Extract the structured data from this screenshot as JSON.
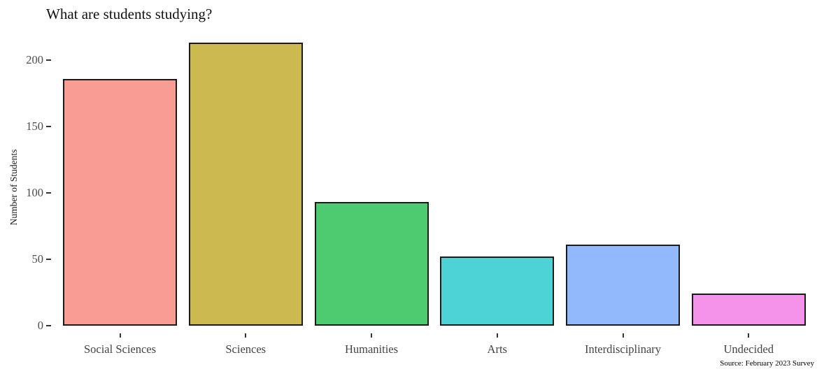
{
  "title": "What are students studying?",
  "caption": "Source: February 2023 Survey",
  "chart_data": {
    "type": "bar",
    "title": "What are students studying?",
    "categories": [
      "Social Sciences",
      "Sciences",
      "Humanities",
      "Arts",
      "Interdisciplinary",
      "Undecided"
    ],
    "values": [
      186,
      213,
      93,
      52,
      61,
      24
    ],
    "bar_colors": [
      "#f89c94",
      "#ccb94f",
      "#4ecb71",
      "#4dd2d6",
      "#92b9fb",
      "#f593eb"
    ],
    "bar_border_color": "#1a1a1a",
    "xlabel": "",
    "ylabel": "Number of Students",
    "y_ticks": [
      0,
      50,
      100,
      150,
      200
    ],
    "ylim": [
      0,
      220
    ],
    "grid": false,
    "legend": "none",
    "axis_text_color": "#4d4d4d",
    "caption": "Source: February 2023 Survey"
  }
}
